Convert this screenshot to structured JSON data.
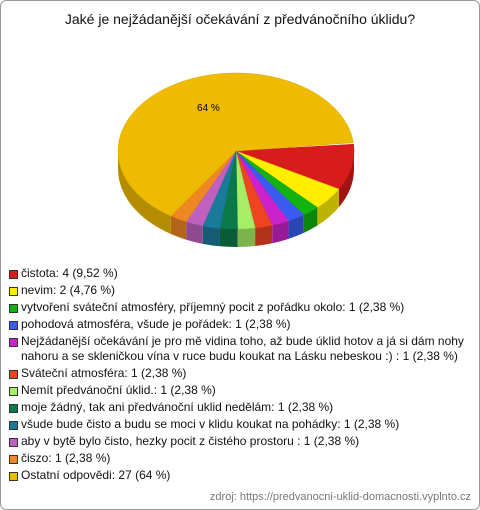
{
  "chart_data": {
    "type": "pie",
    "title": "Jaké je nejžádanější očekávání z předvánočního úklidu?",
    "categories": [
      "čistota: 4 (9,52 %)",
      "nevim: 2 (4,76 %)",
      "vytvoření sváteční atmosféry, příjemný pocit z pořádku okolo: 1 (2,38 %)",
      "pohodová atmosféra, všude je pořádek: 1 (2,38 %)",
      "Nejžádanější očekávání je pro mě vidina toho, až bude úklid hotov a já si dám nohy nahoru a se skleničkou vína v ruce budu koukat na Lásku nebeskou :) : 1 (2,38 %)",
      "Sváteční atmosféra: 1 (2,38 %)",
      "Nemít předvánoční úklid.: 1 (2,38 %)",
      "moje žádný, tak ani předvánoční uklid nedělám: 1 (2,38 %)",
      "všude bude čisto a budu se moci v klidu koukat na pohádky: 1 (2,38 %)",
      "aby v bytě bylo čisto, hezky pocit z čistého prostoru : 1 (2,38 %)",
      "čiszo: 1 (2,38 %)",
      "Ostatní odpovědi: 27 (64 %)"
    ],
    "values": [
      9.52,
      4.76,
      2.38,
      2.38,
      2.38,
      2.38,
      2.38,
      2.38,
      2.38,
      2.38,
      2.38,
      64
    ],
    "value_labels": [
      null,
      null,
      null,
      null,
      null,
      null,
      null,
      null,
      null,
      null,
      null,
      "64 %"
    ],
    "colors": [
      "#d81b1b",
      "#ffee00",
      "#11b311",
      "#3a5cf0",
      "#cc22cc",
      "#ee4422",
      "#a6ee66",
      "#0b7a4a",
      "#1a7a99",
      "#c060c0",
      "#ee8822",
      "#eebb00"
    ],
    "source": "zdroj: https://predvanocni-uklid-domacnosti.vyplnto.cz"
  }
}
